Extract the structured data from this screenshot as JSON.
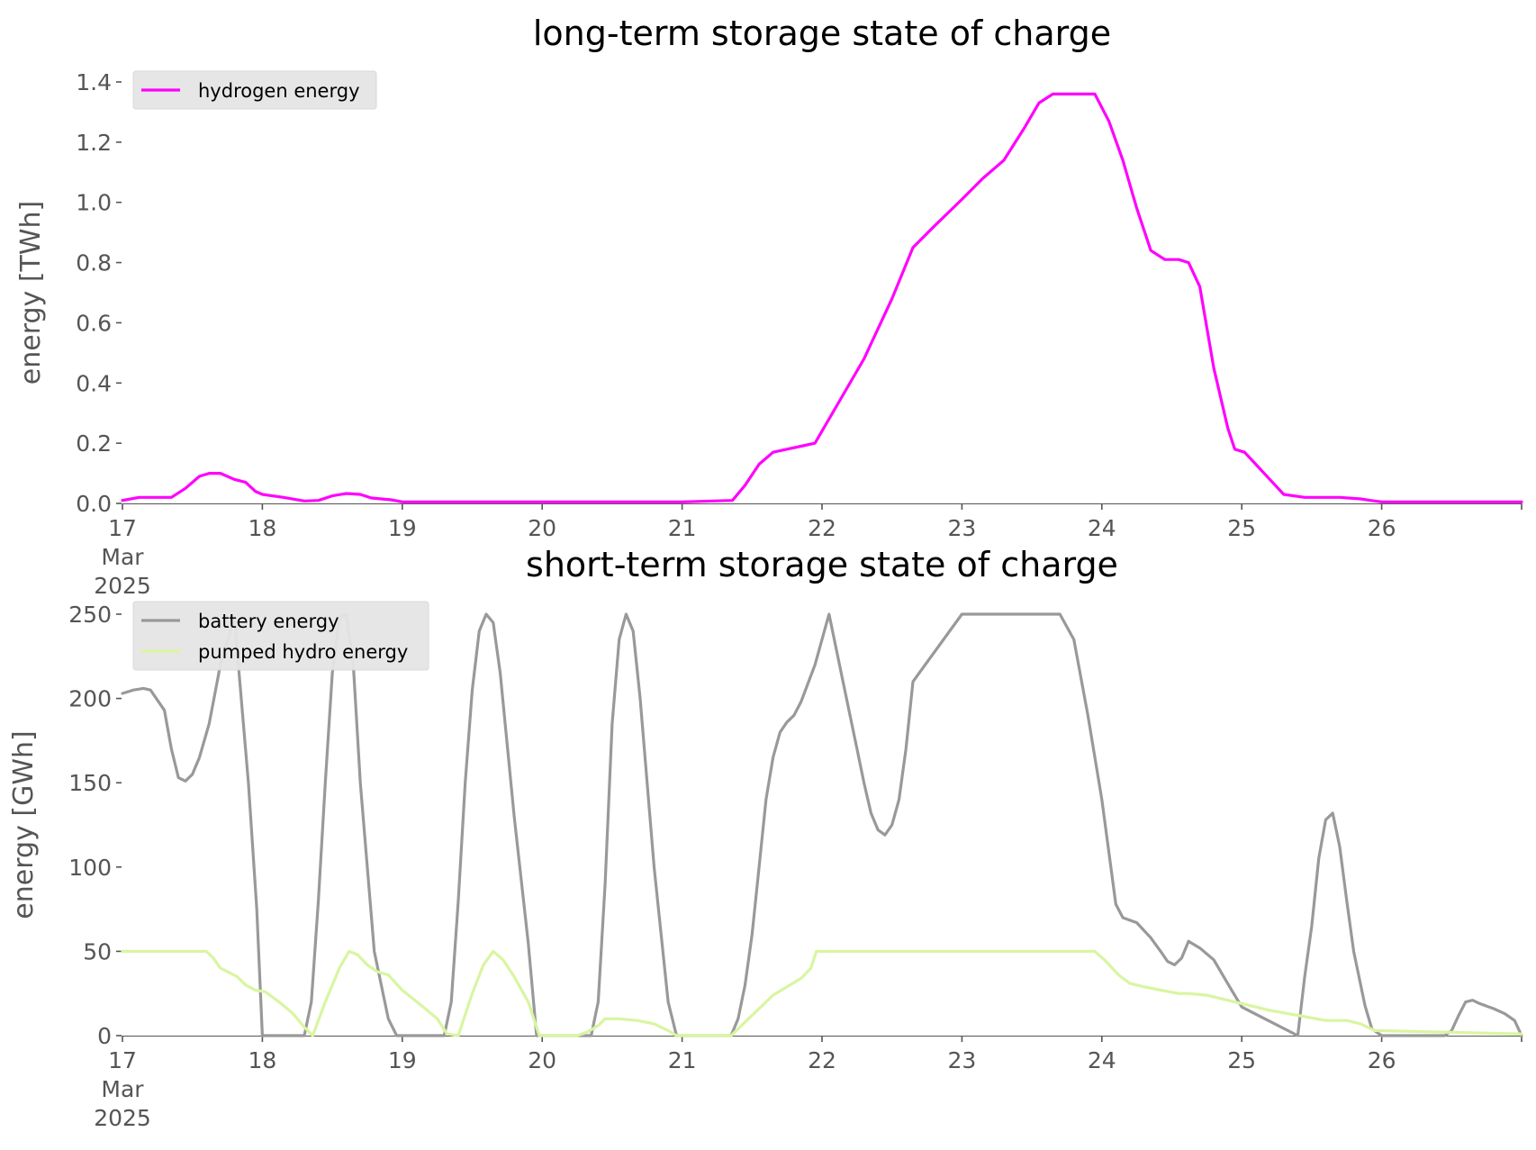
{
  "chart_data": [
    {
      "type": "line",
      "title": "long-term storage state of charge",
      "xlabel": "",
      "ylabel": "energy [TWh]",
      "x_unit": "day of March 2025",
      "xlim": [
        17,
        27
      ],
      "ylim": [
        0,
        1.4
      ],
      "yticks": [
        0,
        0.2,
        0.4,
        0.6,
        0.8,
        1.0,
        1.2,
        1.4
      ],
      "ytick_labels": [
        "0.0",
        "0.2",
        "0.4",
        "0.6",
        "0.8",
        "1.0",
        "1.2",
        "1.4"
      ],
      "xticks": [
        17,
        18,
        19,
        20,
        21,
        22,
        23,
        24,
        25,
        26
      ],
      "xtick_labels": [
        "17",
        "18",
        "19",
        "20",
        "21",
        "22",
        "23",
        "24",
        "25",
        "26"
      ],
      "xtick_sub": [
        "Mar",
        "2025"
      ],
      "grid": false,
      "legend_position": "top-left",
      "series": [
        {
          "name": "hydrogen energy",
          "color": "#ff00ff",
          "x": [
            17.0,
            17.12,
            17.35,
            17.45,
            17.55,
            17.62,
            17.7,
            17.8,
            17.88,
            17.95,
            18.0,
            18.15,
            18.3,
            18.4,
            18.5,
            18.6,
            18.7,
            18.78,
            18.85,
            18.92,
            19.0,
            19.5,
            19.9,
            20.5,
            21.0,
            21.36,
            21.45,
            21.55,
            21.65,
            21.75,
            21.85,
            21.95,
            22.1,
            22.3,
            22.5,
            22.65,
            22.8,
            23.0,
            23.15,
            23.3,
            23.45,
            23.55,
            23.65,
            23.75,
            23.85,
            23.95,
            24.05,
            24.15,
            24.25,
            24.35,
            24.45,
            24.55,
            24.62,
            24.7,
            24.8,
            24.9,
            24.95,
            25.02,
            25.1,
            25.2,
            25.3,
            25.45,
            25.7,
            25.85,
            25.92,
            26.0,
            27.0
          ],
          "y": [
            0.01,
            0.02,
            0.02,
            0.05,
            0.09,
            0.1,
            0.1,
            0.08,
            0.07,
            0.04,
            0.03,
            0.02,
            0.008,
            0.01,
            0.025,
            0.033,
            0.03,
            0.018,
            0.015,
            0.012,
            0.005,
            0.005,
            0.005,
            0.005,
            0.005,
            0.01,
            0.06,
            0.13,
            0.17,
            0.18,
            0.19,
            0.2,
            0.32,
            0.48,
            0.68,
            0.85,
            0.92,
            1.01,
            1.08,
            1.14,
            1.25,
            1.33,
            1.36,
            1.36,
            1.36,
            1.36,
            1.27,
            1.14,
            0.98,
            0.84,
            0.81,
            0.81,
            0.8,
            0.72,
            0.45,
            0.25,
            0.18,
            0.17,
            0.13,
            0.08,
            0.03,
            0.02,
            0.02,
            0.015,
            0.01,
            0.005,
            0.005
          ]
        }
      ]
    },
    {
      "type": "line",
      "title": "short-term storage state of charge",
      "xlabel": "",
      "ylabel": "energy [GWh]",
      "x_unit": "day of March 2025",
      "xlim": [
        17,
        27
      ],
      "ylim": [
        0,
        250
      ],
      "yticks": [
        0,
        50,
        100,
        150,
        200,
        250
      ],
      "ytick_labels": [
        "0",
        "50",
        "100",
        "150",
        "200",
        "250"
      ],
      "xticks": [
        17,
        18,
        19,
        20,
        21,
        22,
        23,
        24,
        25,
        26
      ],
      "xtick_labels": [
        "17",
        "18",
        "19",
        "20",
        "21",
        "22",
        "23",
        "24",
        "25",
        "26"
      ],
      "xtick_sub": [
        "Mar",
        "2025"
      ],
      "grid": false,
      "legend_position": "top-left",
      "series": [
        {
          "name": "battery energy",
          "color": "#999999",
          "x": [
            17.0,
            17.08,
            17.15,
            17.2,
            17.3,
            17.35,
            17.4,
            17.45,
            17.5,
            17.55,
            17.62,
            17.7,
            17.8,
            17.9,
            17.96,
            18.0,
            18.3,
            18.35,
            18.4,
            18.45,
            18.5,
            18.55,
            18.6,
            18.65,
            18.7,
            18.8,
            18.9,
            18.96,
            19.3,
            19.35,
            19.4,
            19.45,
            19.5,
            19.55,
            19.6,
            19.65,
            19.7,
            19.8,
            19.9,
            19.96,
            20.35,
            20.4,
            20.45,
            20.5,
            20.55,
            20.6,
            20.65,
            20.7,
            20.8,
            20.9,
            20.96,
            21.35,
            21.4,
            21.45,
            21.5,
            21.55,
            21.6,
            21.65,
            21.7,
            21.75,
            21.8,
            21.85,
            21.95,
            22.05,
            22.15,
            22.25,
            22.3,
            22.35,
            22.4,
            22.45,
            22.5,
            22.55,
            22.6,
            22.65,
            23.0,
            23.5,
            23.65,
            23.7,
            23.8,
            23.9,
            24.0,
            24.1,
            24.15,
            24.25,
            24.35,
            24.42,
            24.47,
            24.52,
            24.57,
            24.62,
            24.7,
            24.8,
            24.92,
            25.0,
            25.4,
            25.45,
            25.5,
            25.55,
            25.6,
            25.65,
            25.7,
            25.75,
            25.8,
            25.88,
            25.93,
            26.0,
            26.45,
            26.5,
            26.55,
            26.6,
            26.65,
            26.7,
            26.8,
            26.88,
            26.95,
            27.0
          ],
          "y": [
            203,
            205,
            206,
            205,
            193,
            170,
            153,
            151,
            155,
            165,
            185,
            220,
            248,
            150,
            75,
            0,
            0,
            20,
            80,
            150,
            215,
            248,
            250,
            220,
            150,
            50,
            10,
            0,
            0,
            20,
            80,
            150,
            205,
            240,
            250,
            245,
            215,
            130,
            55,
            0,
            0,
            20,
            90,
            185,
            235,
            250,
            240,
            200,
            100,
            20,
            0,
            0,
            10,
            30,
            60,
            100,
            140,
            165,
            180,
            186,
            190,
            198,
            220,
            250,
            210,
            170,
            150,
            132,
            122,
            119,
            125,
            140,
            170,
            210,
            250,
            250,
            250,
            250,
            235,
            190,
            140,
            78,
            70,
            67,
            58,
            50,
            44,
            42,
            46,
            56,
            52,
            45,
            28,
            17,
            0,
            35,
            65,
            105,
            128,
            132,
            112,
            80,
            50,
            18,
            4,
            0,
            0,
            3,
            12,
            20,
            21,
            19,
            16,
            13,
            9,
            0
          ]
        },
        {
          "name": "pumped hydro energy",
          "color": "#d9f5a1",
          "x": [
            17.0,
            17.6,
            17.65,
            17.7,
            17.75,
            17.82,
            17.88,
            17.95,
            18.02,
            18.12,
            18.22,
            18.3,
            18.36,
            18.45,
            18.55,
            18.62,
            18.68,
            18.75,
            18.82,
            18.9,
            19.0,
            19.15,
            19.25,
            19.32,
            19.4,
            19.5,
            19.58,
            19.65,
            19.72,
            19.8,
            19.9,
            19.98,
            20.25,
            20.32,
            20.4,
            20.45,
            20.55,
            20.68,
            20.8,
            20.9,
            20.96,
            21.35,
            21.45,
            21.55,
            21.65,
            21.75,
            21.85,
            21.92,
            21.96,
            22.5,
            23.5,
            23.95,
            24.03,
            24.12,
            24.2,
            24.3,
            24.42,
            24.55,
            24.62,
            24.75,
            24.9,
            25.0,
            25.2,
            25.4,
            25.6,
            25.75,
            25.85,
            25.95,
            27.0
          ],
          "y": [
            50,
            50,
            46,
            40,
            38,
            35,
            30,
            27,
            26,
            20,
            13,
            5,
            0,
            20,
            40,
            50,
            48,
            42,
            38,
            36,
            27,
            17,
            10,
            1,
            0,
            25,
            42,
            50,
            45,
            35,
            20,
            0,
            0,
            2,
            6,
            10,
            10,
            9,
            7,
            3,
            0,
            0,
            8,
            16,
            24,
            29,
            34,
            40,
            50,
            50,
            50,
            50,
            44,
            36,
            31,
            29,
            27,
            25,
            25,
            24,
            21,
            19,
            15,
            12,
            9,
            9,
            7,
            3,
            1
          ]
        }
      ]
    }
  ]
}
